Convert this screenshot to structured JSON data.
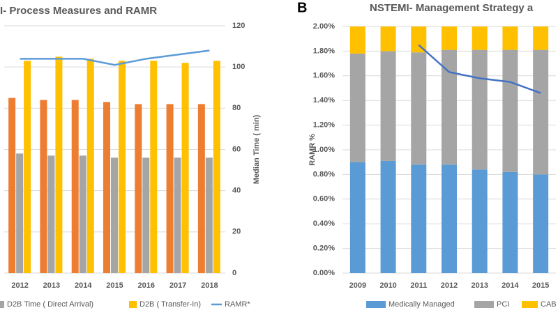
{
  "chart_data": [
    {
      "type": "bar",
      "title": "I- Process Measures and RAMR",
      "y_label": "Median Time ( min)",
      "categories": [
        "2012",
        "2013",
        "2014",
        "2015",
        "2016",
        "2017",
        "2018"
      ],
      "series": [
        {
          "color": "#ed7d31",
          "values": [
            85,
            84,
            84,
            83,
            82,
            82,
            82
          ]
        },
        {
          "name": "D2B Time ( Direct Arrival)",
          "color": "#a5a5a5",
          "values": [
            58,
            57,
            57,
            56,
            56,
            56,
            56
          ]
        },
        {
          "name": "D2B ( Transfer-In)",
          "color": "#ffc000",
          "values": [
            103,
            105,
            104,
            103,
            103,
            102,
            103
          ]
        },
        {
          "name": "RAMR*",
          "type": "line",
          "color": "#5b9bd5",
          "values": [
            104,
            104,
            104,
            101,
            104,
            106,
            108
          ]
        }
      ],
      "ylim": [
        0,
        120
      ],
      "yticks": [
        0,
        20,
        40,
        60,
        80,
        100,
        120
      ],
      "grid": true
    },
    {
      "type": "bar",
      "stacked": true,
      "panel_label": "B",
      "title": "NSTEMI- Management Strategy a",
      "y_label": "RAMR %",
      "categories": [
        "2009",
        "2010",
        "2011",
        "2012",
        "2013",
        "2014",
        "2015"
      ],
      "series": [
        {
          "name": "Medically Managed",
          "color": "#5b9bd5",
          "values": [
            0.9,
            0.91,
            0.88,
            0.88,
            0.84,
            0.82,
            0.8
          ]
        },
        {
          "name": "PCI",
          "color": "#a5a5a5",
          "values": [
            0.88,
            0.89,
            0.91,
            0.93,
            0.97,
            0.99,
            1.01
          ]
        },
        {
          "name": "CAB",
          "color": "#ffc000",
          "values": [
            0.22,
            0.2,
            0.21,
            0.19,
            0.19,
            0.19,
            0.19
          ]
        },
        {
          "type": "line",
          "color": "#4472c4",
          "values": [
            null,
            null,
            1.85,
            1.63,
            1.58,
            1.55,
            1.46
          ]
        }
      ],
      "ylim": [
        0,
        2
      ],
      "yticks": [
        {
          "value": 0,
          "label": "0.00%"
        },
        {
          "value": 0.2,
          "label": "0.20%"
        },
        {
          "value": 0.4,
          "label": "0.40%"
        },
        {
          "value": 0.6,
          "label": "0.60%"
        },
        {
          "value": 0.8,
          "label": "0.80%"
        },
        {
          "value": 1.0,
          "label": "1.00%"
        },
        {
          "value": 1.2,
          "label": "1.20%"
        },
        {
          "value": 1.4,
          "label": "1.40%"
        },
        {
          "value": 1.6,
          "label": "1.60%"
        },
        {
          "value": 1.8,
          "label": "1.80%"
        },
        {
          "value": 2.0,
          "label": "2.00%"
        }
      ],
      "grid": true
    }
  ]
}
